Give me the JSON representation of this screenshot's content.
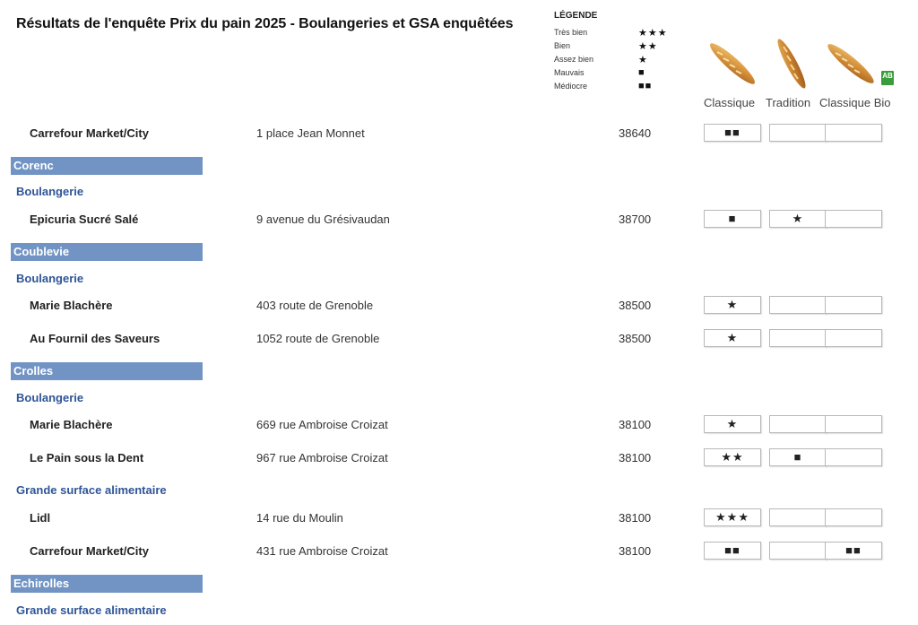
{
  "title": "Résultats de l'enquête Prix du pain 2025 - Boulangeries et GSA enquêtées",
  "legend": {
    "title": "LÉGENDE",
    "items": [
      {
        "label": "Très bien",
        "symbol": "★★★"
      },
      {
        "label": "Bien",
        "symbol": "★★"
      },
      {
        "label": "Assez bien",
        "symbol": "★"
      },
      {
        "label": "Mauvais",
        "symbol": "■"
      },
      {
        "label": "Médiocre",
        "symbol": "■■"
      }
    ]
  },
  "columns": {
    "classique": "Classique",
    "tradition": "Tradition",
    "classique_bio": "Classique Bio"
  },
  "bio_badge": "AB",
  "rows": [
    {
      "type": "store",
      "name": "Carrefour Market/City",
      "address": "1 place Jean Monnet",
      "postcode": "38640",
      "ratings": [
        "■■",
        "",
        ""
      ]
    },
    {
      "type": "commune",
      "label": "Corenc"
    },
    {
      "type": "category",
      "label": "Boulangerie"
    },
    {
      "type": "store",
      "name": "Epicuria Sucré Salé",
      "address": "9 avenue du Grésivaudan",
      "postcode": "38700",
      "ratings": [
        "■",
        "★",
        ""
      ]
    },
    {
      "type": "commune",
      "label": "Coublevie"
    },
    {
      "type": "category",
      "label": "Boulangerie"
    },
    {
      "type": "store",
      "name": "Marie Blachère",
      "address": "403 route de Grenoble",
      "postcode": "38500",
      "ratings": [
        "★",
        "",
        ""
      ]
    },
    {
      "type": "store",
      "name": "Au Fournil des Saveurs",
      "address": "1052 route de Grenoble",
      "postcode": "38500",
      "ratings": [
        "★",
        "",
        ""
      ]
    },
    {
      "type": "commune",
      "label": "Crolles"
    },
    {
      "type": "category",
      "label": "Boulangerie"
    },
    {
      "type": "store",
      "name": "Marie Blachère",
      "address": "669 rue Ambroise Croizat",
      "postcode": "38100",
      "ratings": [
        "★",
        "",
        ""
      ]
    },
    {
      "type": "store",
      "name": "Le Pain sous la Dent",
      "address": "967 rue Ambroise Croizat",
      "postcode": "38100",
      "ratings": [
        "★★",
        "■",
        ""
      ]
    },
    {
      "type": "category",
      "label": "Grande surface alimentaire"
    },
    {
      "type": "store",
      "name": "Lidl",
      "address": "14 rue du Moulin",
      "postcode": "38100",
      "ratings": [
        "★★★",
        "",
        ""
      ]
    },
    {
      "type": "store",
      "name": "Carrefour Market/City",
      "address": "431 rue Ambroise Croizat",
      "postcode": "38100",
      "ratings": [
        "■■",
        "",
        "■■"
      ]
    },
    {
      "type": "commune",
      "label": "Echirolles"
    },
    {
      "type": "category",
      "label": "Grande surface alimentaire"
    }
  ]
}
